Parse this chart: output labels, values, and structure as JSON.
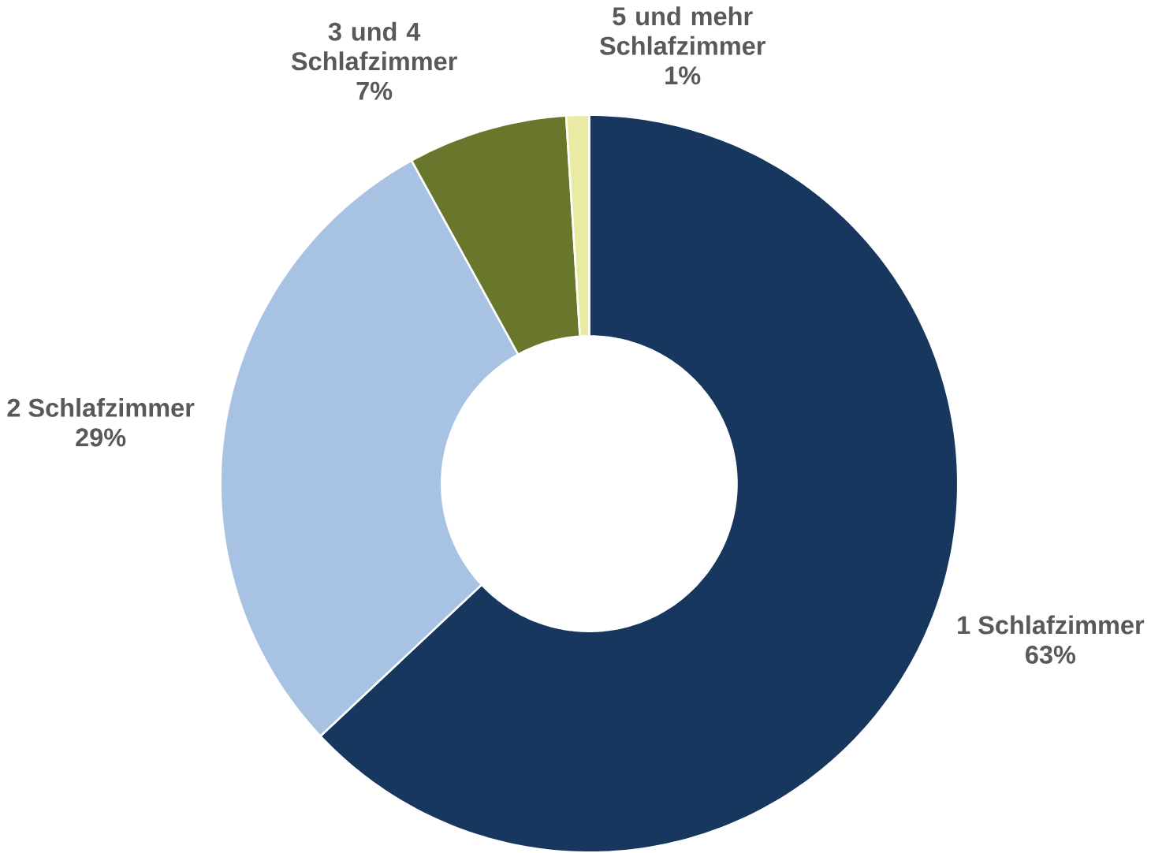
{
  "chart_data": {
    "type": "donut",
    "categories": [
      "1 Schlafzimmer",
      "2 Schlafzimmer",
      "3 und 4 Schlafzimmer",
      "5 und mehr Schlafzimmer"
    ],
    "values": [
      63,
      29,
      7,
      1
    ],
    "value_labels": [
      "63%",
      "29%",
      "7%",
      "1%"
    ],
    "colors": [
      "#17375e",
      "#a7c2e2",
      "#69772c",
      "#e9eba4"
    ]
  }
}
